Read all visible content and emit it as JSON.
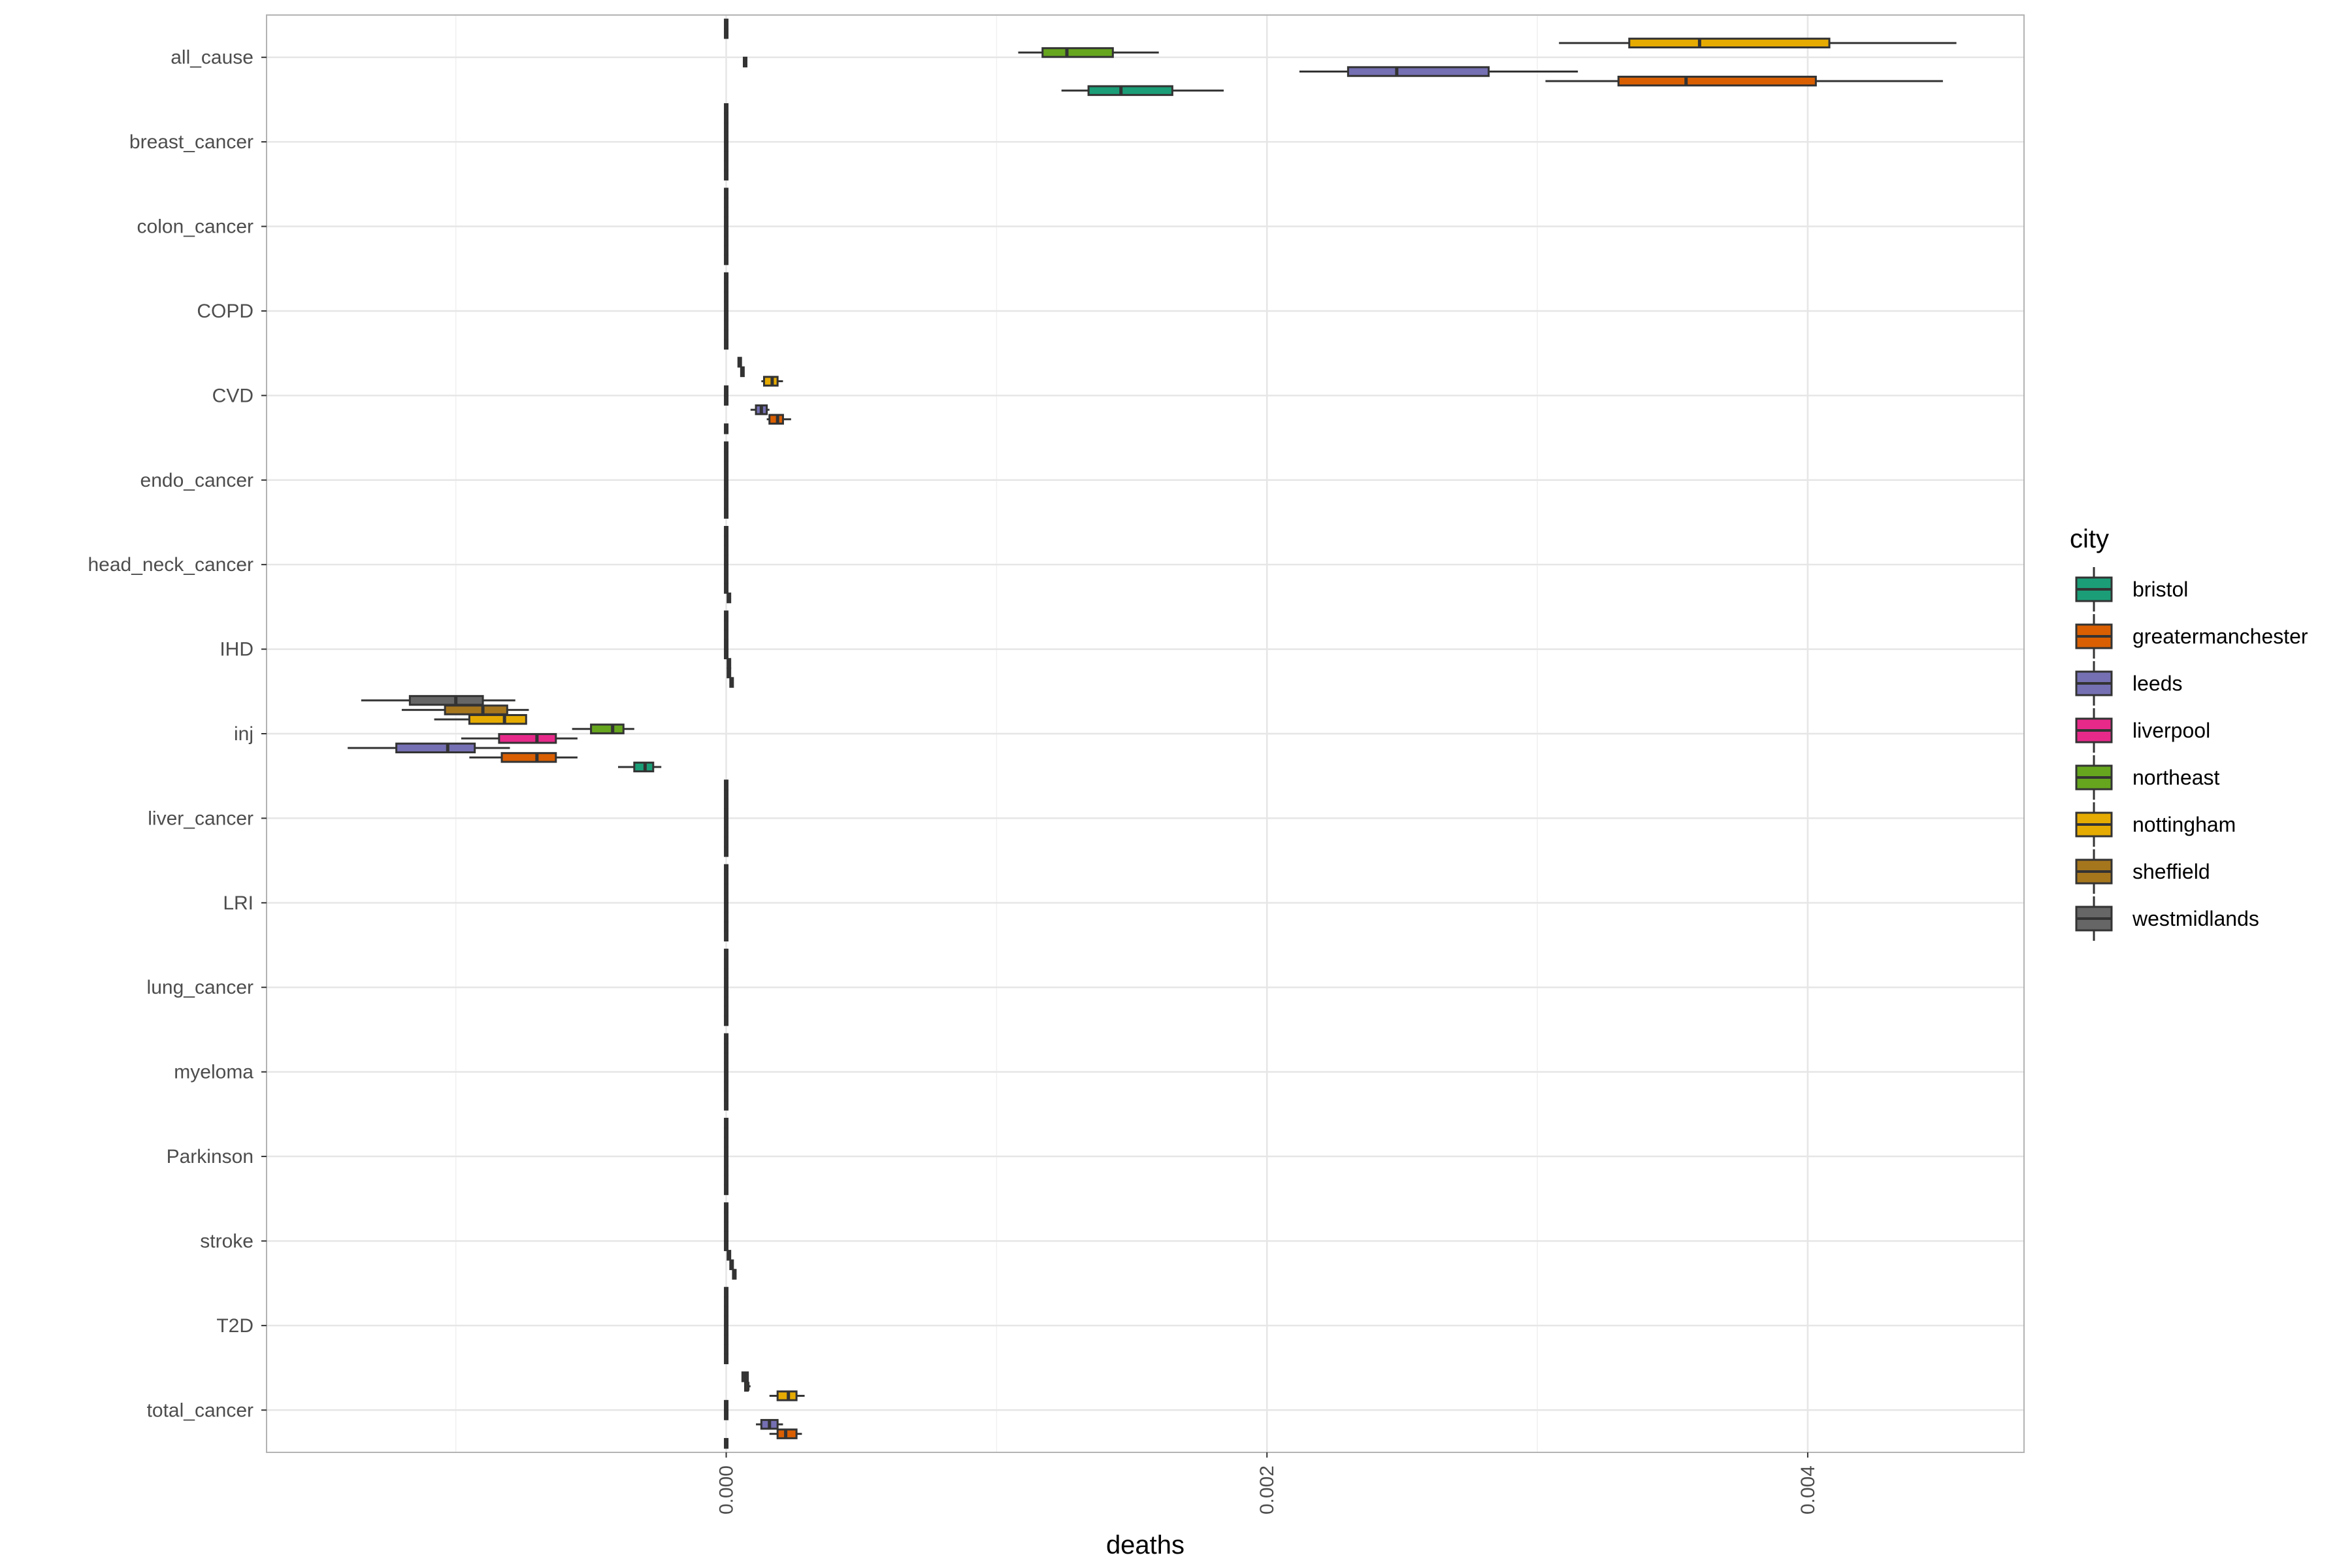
{
  "chart_data": {
    "type": "boxplot",
    "orientation": "horizontal",
    "xlabel": "deaths",
    "ylabel": "",
    "xlim": [
      -0.0017,
      0.0048
    ],
    "x_ticks": [
      0.0,
      0.002,
      0.004
    ],
    "x_tick_labels": [
      "0.000",
      "0.002",
      "0.004"
    ],
    "grid": true,
    "legend": {
      "title": "city",
      "position": "right"
    },
    "categories": [
      "total_cancer",
      "T2D",
      "stroke",
      "Parkinson",
      "myeloma",
      "lung_cancer",
      "LRI",
      "liver_cancer",
      "inj",
      "IHD",
      "head_neck_cancer",
      "endo_cancer",
      "CVD",
      "COPD",
      "colon_cancer",
      "breast_cancer",
      "all_cause"
    ],
    "series": [
      {
        "name": "bristol",
        "color": "#1B9E77",
        "boxes": {
          "total_cancer": [
            0.0,
            0.0,
            0.0,
            0.0,
            0.0
          ],
          "T2D": [
            0.0,
            0.0,
            0.0,
            0.0,
            0.0
          ],
          "stroke": [
            3e-05,
            3e-05,
            3e-05,
            3e-05,
            3e-05
          ],
          "Parkinson": [
            0.0,
            0.0,
            0.0,
            0.0,
            0.0
          ],
          "myeloma": [
            0.0,
            0.0,
            0.0,
            0.0,
            0.0
          ],
          "lung_cancer": [
            0.0,
            0.0,
            0.0,
            0.0,
            0.0
          ],
          "LRI": [
            0.0,
            0.0,
            0.0,
            0.0,
            0.0
          ],
          "liver_cancer": [
            0.0,
            0.0,
            0.0,
            0.0,
            0.0
          ],
          "inj": [
            -0.0004,
            -0.00034,
            -0.0003,
            -0.00027,
            -0.00024
          ],
          "IHD": [
            2e-05,
            2e-05,
            2e-05,
            2e-05,
            2e-05
          ],
          "head_neck_cancer": [
            1e-05,
            1e-05,
            1e-05,
            1e-05,
            1e-05
          ],
          "endo_cancer": [
            0.0,
            0.0,
            0.0,
            0.0,
            0.0
          ],
          "CVD": [
            0.0,
            0.0,
            0.0,
            0.0,
            0.0
          ],
          "COPD": [
            0.0,
            0.0,
            0.0,
            0.0,
            0.0
          ],
          "colon_cancer": [
            0.0,
            0.0,
            0.0,
            0.0,
            0.0
          ],
          "breast_cancer": [
            0.0,
            0.0,
            0.0,
            0.0,
            0.0
          ],
          "all_cause": [
            0.00124,
            0.00134,
            0.00146,
            0.00165,
            0.00184
          ]
        }
      },
      {
        "name": "greatermanchester",
        "color": "#D95F02",
        "boxes": {
          "total_cancer": [
            0.00016,
            0.00019,
            0.00022,
            0.00026,
            0.00028
          ],
          "T2D": [
            0.0,
            0.0,
            0.0,
            0.0,
            0.0
          ],
          "stroke": [
            2e-05,
            2e-05,
            2e-05,
            2e-05,
            2e-05
          ],
          "Parkinson": [
            0.0,
            0.0,
            0.0,
            0.0,
            0.0
          ],
          "myeloma": [
            0.0,
            0.0,
            0.0,
            0.0,
            0.0
          ],
          "lung_cancer": [
            0.0,
            0.0,
            0.0,
            0.0,
            0.0
          ],
          "LRI": [
            0.0,
            0.0,
            0.0,
            0.0,
            0.0
          ],
          "liver_cancer": [
            0.0,
            0.0,
            0.0,
            0.0,
            0.0
          ],
          "inj": [
            -0.00095,
            -0.00083,
            -0.0007,
            -0.00063,
            -0.00055
          ],
          "IHD": [
            1e-05,
            1e-05,
            1e-05,
            1e-05,
            1e-05
          ],
          "head_neck_cancer": [
            0.0,
            0.0,
            0.0,
            0.0,
            0.0
          ],
          "endo_cancer": [
            0.0,
            0.0,
            0.0,
            0.0,
            0.0
          ],
          "CVD": [
            0.00015,
            0.00016,
            0.00019,
            0.00021,
            0.00024
          ],
          "COPD": [
            0.0,
            0.0,
            0.0,
            0.0,
            0.0
          ],
          "colon_cancer": [
            0.0,
            0.0,
            0.0,
            0.0,
            0.0
          ],
          "breast_cancer": [
            0.0,
            0.0,
            0.0,
            0.0,
            0.0
          ],
          "all_cause": [
            0.00303,
            0.0033,
            0.00355,
            0.00403,
            0.0045
          ]
        }
      },
      {
        "name": "leeds",
        "color": "#7570B3",
        "boxes": {
          "total_cancer": [
            0.00011,
            0.00013,
            0.00016,
            0.00019,
            0.00021
          ],
          "T2D": [
            0.0,
            0.0,
            0.0,
            0.0,
            0.0
          ],
          "stroke": [
            1e-05,
            1e-05,
            1e-05,
            1e-05,
            1e-05
          ],
          "Parkinson": [
            0.0,
            0.0,
            0.0,
            0.0,
            0.0
          ],
          "myeloma": [
            0.0,
            0.0,
            0.0,
            0.0,
            0.0
          ],
          "lung_cancer": [
            0.0,
            0.0,
            0.0,
            0.0,
            0.0
          ],
          "LRI": [
            0.0,
            0.0,
            0.0,
            0.0,
            0.0
          ],
          "liver_cancer": [
            0.0,
            0.0,
            0.0,
            0.0,
            0.0
          ],
          "inj": [
            -0.0014,
            -0.00122,
            -0.00103,
            -0.00093,
            -0.0008
          ],
          "IHD": [
            1e-05,
            1e-05,
            1e-05,
            1e-05,
            1e-05
          ],
          "head_neck_cancer": [
            0.0,
            0.0,
            0.0,
            0.0,
            0.0
          ],
          "endo_cancer": [
            0.0,
            0.0,
            0.0,
            0.0,
            0.0
          ],
          "CVD": [
            9e-05,
            0.00011,
            0.00013,
            0.00015,
            0.00016
          ],
          "COPD": [
            0.0,
            0.0,
            0.0,
            0.0,
            0.0
          ],
          "colon_cancer": [
            0.0,
            0.0,
            0.0,
            0.0,
            0.0
          ],
          "breast_cancer": [
            0.0,
            0.0,
            0.0,
            0.0,
            0.0
          ],
          "all_cause": [
            0.00212,
            0.0023,
            0.00248,
            0.00282,
            0.00315
          ]
        }
      },
      {
        "name": "liverpool",
        "color": "#E7298A",
        "boxes": {
          "total_cancer": [
            0.0,
            0.0,
            0.0,
            0.0,
            0.0
          ],
          "T2D": [
            0.0,
            0.0,
            0.0,
            0.0,
            0.0
          ],
          "stroke": [
            0.0,
            0.0,
            0.0,
            0.0,
            0.0
          ],
          "Parkinson": [
            0.0,
            0.0,
            0.0,
            0.0,
            0.0
          ],
          "myeloma": [
            0.0,
            0.0,
            0.0,
            0.0,
            0.0
          ],
          "lung_cancer": [
            0.0,
            0.0,
            0.0,
            0.0,
            0.0
          ],
          "LRI": [
            0.0,
            0.0,
            0.0,
            0.0,
            0.0
          ],
          "liver_cancer": [
            0.0,
            0.0,
            0.0,
            0.0,
            0.0
          ],
          "inj": [
            -0.00098,
            -0.00084,
            -0.0007,
            -0.00063,
            -0.00055
          ],
          "IHD": [
            0.0,
            0.0,
            0.0,
            0.0,
            0.0
          ],
          "head_neck_cancer": [
            0.0,
            0.0,
            0.0,
            0.0,
            0.0
          ],
          "endo_cancer": [
            0.0,
            0.0,
            0.0,
            0.0,
            0.0
          ],
          "CVD": [
            0.0,
            0.0,
            0.0,
            0.0,
            0.0
          ],
          "COPD": [
            0.0,
            0.0,
            0.0,
            0.0,
            0.0
          ],
          "colon_cancer": [
            0.0,
            0.0,
            0.0,
            0.0,
            0.0
          ],
          "breast_cancer": [
            0.0,
            0.0,
            0.0,
            0.0,
            0.0
          ],
          "all_cause": [
            7e-05,
            7e-05,
            7e-05,
            7e-05,
            7e-05
          ]
        }
      },
      {
        "name": "northeast",
        "color": "#66A61E",
        "boxes": {
          "total_cancer": [
            0.0,
            0.0,
            0.0,
            0.0,
            0.0
          ],
          "T2D": [
            0.0,
            0.0,
            0.0,
            0.0,
            0.0
          ],
          "stroke": [
            0.0,
            0.0,
            0.0,
            0.0,
            0.0
          ],
          "Parkinson": [
            0.0,
            0.0,
            0.0,
            0.0,
            0.0
          ],
          "myeloma": [
            0.0,
            0.0,
            0.0,
            0.0,
            0.0
          ],
          "lung_cancer": [
            0.0,
            0.0,
            0.0,
            0.0,
            0.0
          ],
          "LRI": [
            0.0,
            0.0,
            0.0,
            0.0,
            0.0
          ],
          "liver_cancer": [
            0.0,
            0.0,
            0.0,
            0.0,
            0.0
          ],
          "inj": [
            -0.00057,
            -0.0005,
            -0.00042,
            -0.00038,
            -0.00034
          ],
          "IHD": [
            0.0,
            0.0,
            0.0,
            0.0,
            0.0
          ],
          "head_neck_cancer": [
            0.0,
            0.0,
            0.0,
            0.0,
            0.0
          ],
          "endo_cancer": [
            0.0,
            0.0,
            0.0,
            0.0,
            0.0
          ],
          "CVD": [
            0.0,
            0.0,
            0.0,
            0.0,
            0.0
          ],
          "COPD": [
            0.0,
            0.0,
            0.0,
            0.0,
            0.0
          ],
          "colon_cancer": [
            0.0,
            0.0,
            0.0,
            0.0,
            0.0
          ],
          "breast_cancer": [
            0.0,
            0.0,
            0.0,
            0.0,
            0.0
          ],
          "all_cause": [
            0.00108,
            0.00117,
            0.00126,
            0.00143,
            0.0016
          ]
        }
      },
      {
        "name": "nottingham",
        "color": "#E6AB02",
        "boxes": {
          "total_cancer": [
            0.00016,
            0.00019,
            0.00023,
            0.00026,
            0.00029
          ],
          "T2D": [
            0.0,
            0.0,
            0.0,
            0.0,
            0.0
          ],
          "stroke": [
            0.0,
            0.0,
            0.0,
            0.0,
            0.0
          ],
          "Parkinson": [
            0.0,
            0.0,
            0.0,
            0.0,
            0.0
          ],
          "myeloma": [
            0.0,
            0.0,
            0.0,
            0.0,
            0.0
          ],
          "lung_cancer": [
            0.0,
            0.0,
            0.0,
            0.0,
            0.0
          ],
          "LRI": [
            0.0,
            0.0,
            0.0,
            0.0,
            0.0
          ],
          "liver_cancer": [
            0.0,
            0.0,
            0.0,
            0.0,
            0.0
          ],
          "inj": [
            -0.00108,
            -0.00095,
            -0.00082,
            -0.00074,
            -0.00074
          ],
          "IHD": [
            0.0,
            0.0,
            0.0,
            0.0,
            0.0
          ],
          "head_neck_cancer": [
            0.0,
            0.0,
            0.0,
            0.0,
            0.0
          ],
          "endo_cancer": [
            0.0,
            0.0,
            0.0,
            0.0,
            0.0
          ],
          "CVD": [
            0.00013,
            0.00014,
            0.00017,
            0.00019,
            0.00021
          ],
          "COPD": [
            0.0,
            0.0,
            0.0,
            0.0,
            0.0
          ],
          "colon_cancer": [
            0.0,
            0.0,
            0.0,
            0.0,
            0.0
          ],
          "breast_cancer": [
            0.0,
            0.0,
            0.0,
            0.0,
            0.0
          ],
          "all_cause": [
            0.00308,
            0.00334,
            0.0036,
            0.00408,
            0.00455
          ]
        }
      },
      {
        "name": "sheffield",
        "color": "#A6761D",
        "boxes": {
          "total_cancer": [
            7e-05,
            7e-05,
            8e-05,
            8e-05,
            9e-05
          ],
          "T2D": [
            0.0,
            0.0,
            0.0,
            0.0,
            0.0
          ],
          "stroke": [
            0.0,
            0.0,
            0.0,
            0.0,
            0.0
          ],
          "Parkinson": [
            0.0,
            0.0,
            0.0,
            0.0,
            0.0
          ],
          "myeloma": [
            0.0,
            0.0,
            0.0,
            0.0,
            0.0
          ],
          "lung_cancer": [
            0.0,
            0.0,
            0.0,
            0.0,
            0.0
          ],
          "LRI": [
            0.0,
            0.0,
            0.0,
            0.0,
            0.0
          ],
          "liver_cancer": [
            0.0,
            0.0,
            0.0,
            0.0,
            0.0
          ],
          "inj": [
            -0.0012,
            -0.00104,
            -0.0009,
            -0.00081,
            -0.00073
          ],
          "IHD": [
            0.0,
            0.0,
            0.0,
            0.0,
            0.0
          ],
          "head_neck_cancer": [
            0.0,
            0.0,
            0.0,
            0.0,
            0.0
          ],
          "endo_cancer": [
            0.0,
            0.0,
            0.0,
            0.0,
            0.0
          ],
          "CVD": [
            6e-05,
            6e-05,
            6e-05,
            6e-05,
            6e-05
          ],
          "COPD": [
            0.0,
            0.0,
            0.0,
            0.0,
            0.0
          ],
          "colon_cancer": [
            0.0,
            0.0,
            0.0,
            0.0,
            0.0
          ],
          "breast_cancer": [
            0.0,
            0.0,
            0.0,
            0.0,
            0.0
          ],
          "all_cause": [
            0.0,
            0.0,
            0.0,
            0.0,
            0.0
          ]
        }
      },
      {
        "name": "westmidlands",
        "color": "#666666",
        "boxes": {
          "total_cancer": [
            6e-05,
            6e-05,
            7e-05,
            8e-05,
            8e-05
          ],
          "T2D": [
            0.0,
            0.0,
            0.0,
            0.0,
            0.0
          ],
          "stroke": [
            0.0,
            0.0,
            0.0,
            0.0,
            0.0
          ],
          "Parkinson": [
            0.0,
            0.0,
            0.0,
            0.0,
            0.0
          ],
          "myeloma": [
            0.0,
            0.0,
            0.0,
            0.0,
            0.0
          ],
          "lung_cancer": [
            0.0,
            0.0,
            0.0,
            0.0,
            0.0
          ],
          "LRI": [
            0.0,
            0.0,
            0.0,
            0.0,
            0.0
          ],
          "liver_cancer": [
            0.0,
            0.0,
            0.0,
            0.0,
            0.0
          ],
          "inj": [
            -0.00135,
            -0.00117,
            -0.001,
            -0.0009,
            -0.00078
          ],
          "IHD": [
            0.0,
            0.0,
            0.0,
            0.0,
            0.0
          ],
          "head_neck_cancer": [
            0.0,
            0.0,
            0.0,
            0.0,
            0.0
          ],
          "endo_cancer": [
            0.0,
            0.0,
            0.0,
            0.0,
            0.0
          ],
          "CVD": [
            5e-05,
            5e-05,
            5e-05,
            5e-05,
            5e-05
          ],
          "COPD": [
            0.0,
            0.0,
            0.0,
            0.0,
            0.0
          ],
          "colon_cancer": [
            0.0,
            0.0,
            0.0,
            0.0,
            0.0
          ],
          "breast_cancer": [
            0.0,
            0.0,
            0.0,
            0.0,
            0.0
          ],
          "all_cause": [
            0.0,
            0.0,
            0.0,
            0.0,
            0.0
          ]
        }
      }
    ]
  }
}
